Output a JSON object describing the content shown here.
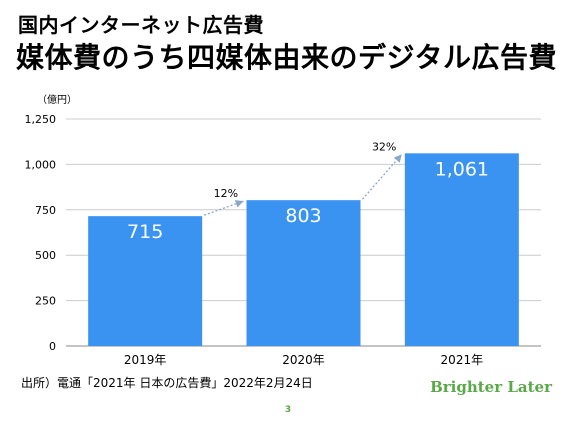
{
  "header": {
    "title_line1": "国内インターネット広告費",
    "title_line2": "媒体費のうち四媒体由来のデジタル広告費"
  },
  "chart_data": {
    "type": "bar",
    "unit_label": "（億円）",
    "categories": [
      "2019年",
      "2020年",
      "2021年"
    ],
    "values": [
      715,
      803,
      1061
    ],
    "data_labels": [
      "715",
      "803",
      "1,061"
    ],
    "ylim": [
      0,
      1250
    ],
    "y_ticks": [
      0,
      250,
      500,
      750,
      1000,
      1250
    ],
    "y_tick_labels": [
      "0",
      "250",
      "500",
      "750",
      "1,000",
      "1,250"
    ],
    "grid": true,
    "bar_color": "#3a93f0",
    "growth_annotations": [
      {
        "from": 0,
        "to": 1,
        "label": "12%"
      },
      {
        "from": 1,
        "to": 2,
        "label": "32%"
      }
    ]
  },
  "footer": {
    "source": "出所）電通「2021年 日本の広告費」2022年2月24日",
    "brand": "Brighter Later",
    "page_number": "3"
  },
  "colors": {
    "bar": "#3a93f0",
    "grid": "#cccccc",
    "arrow": "#8aa6c8",
    "brand": "#5aa84a"
  }
}
